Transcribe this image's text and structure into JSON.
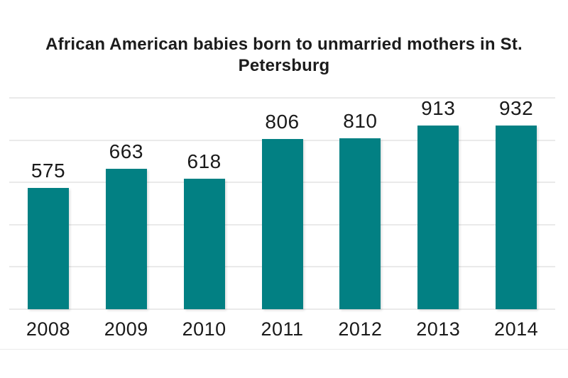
{
  "page": {
    "background": "#ffffff"
  },
  "chart_data": {
    "type": "bar",
    "title": "African American babies born to unmarried mothers in St. Petersburg",
    "title_lines": [
      "African American babies born to unmarried mothers in St.",
      "Petersburg"
    ],
    "categories": [
      "2008",
      "2009",
      "2010",
      "2011",
      "2012",
      "2013",
      "2014"
    ],
    "values": [
      575,
      663,
      618,
      806,
      810,
      913,
      932
    ],
    "xlabel": "",
    "ylabel": "",
    "ylim": [
      0,
      1000
    ],
    "gridline_step": 200,
    "grid": true,
    "legend_position": "none",
    "colors": {
      "bar": "#028083",
      "text": "#1a1a1a",
      "title": "#1c1c1c",
      "gridline": "#d6d6d6",
      "footer_rule": "#eaeaea"
    }
  }
}
